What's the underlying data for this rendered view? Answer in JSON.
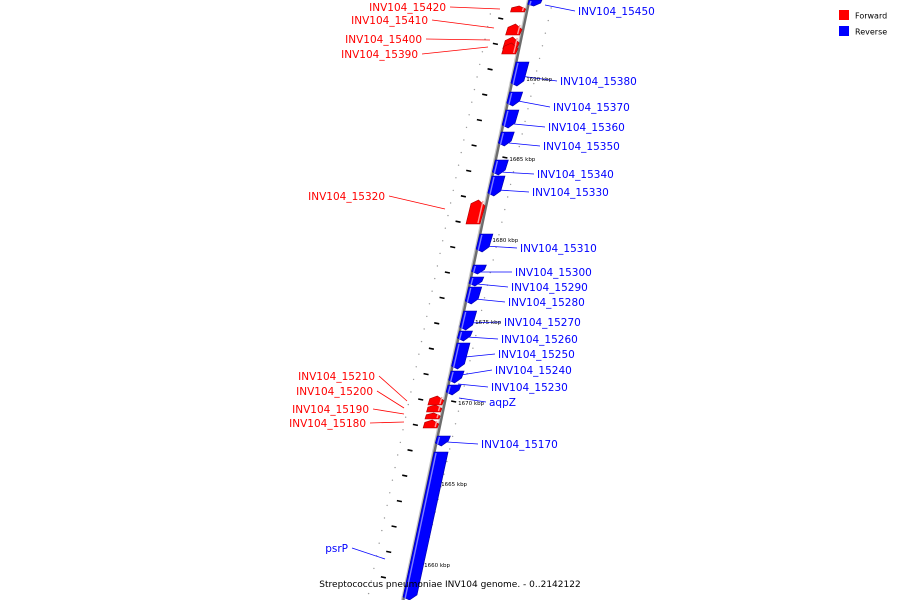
{
  "colors": {
    "forward": "#ff0000",
    "reverse": "#0000ff",
    "axis": "#8a8a8a",
    "tick": "#000000"
  },
  "legend": [
    {
      "label": "Forward",
      "color": "#ff0000"
    },
    {
      "label": "Reverse",
      "color": "#0000ff"
    }
  ],
  "caption": "Streptococcus pneumoniae INV104 genome. - 0..2142122",
  "kbp_labels": [
    "1690 kbp",
    "1685 kbp",
    "1680 kbp",
    "1675 kbp",
    "1670 kbp",
    "1665 kbp",
    "1660 kbp"
  ],
  "genes": [
    {
      "name": "INV104_15450",
      "strand": "reverse"
    },
    {
      "name": "INV104_15420",
      "strand": "forward"
    },
    {
      "name": "INV104_15410",
      "strand": "forward"
    },
    {
      "name": "INV104_15400",
      "strand": "forward"
    },
    {
      "name": "INV104_15390",
      "strand": "forward"
    },
    {
      "name": "INV104_15380",
      "strand": "reverse"
    },
    {
      "name": "INV104_15370",
      "strand": "reverse"
    },
    {
      "name": "INV104_15360",
      "strand": "reverse"
    },
    {
      "name": "INV104_15350",
      "strand": "reverse"
    },
    {
      "name": "INV104_15340",
      "strand": "reverse"
    },
    {
      "name": "INV104_15330",
      "strand": "reverse"
    },
    {
      "name": "INV104_15320",
      "strand": "forward"
    },
    {
      "name": "INV104_15310",
      "strand": "reverse"
    },
    {
      "name": "INV104_15300",
      "strand": "reverse"
    },
    {
      "name": "INV104_15290",
      "strand": "reverse"
    },
    {
      "name": "INV104_15280",
      "strand": "reverse"
    },
    {
      "name": "INV104_15270",
      "strand": "reverse"
    },
    {
      "name": "INV104_15260",
      "strand": "reverse"
    },
    {
      "name": "INV104_15250",
      "strand": "reverse"
    },
    {
      "name": "INV104_15240",
      "strand": "reverse"
    },
    {
      "name": "INV104_15230",
      "strand": "reverse"
    },
    {
      "name": "aqpZ",
      "strand": "reverse"
    },
    {
      "name": "INV104_15210",
      "strand": "forward"
    },
    {
      "name": "INV104_15200",
      "strand": "forward"
    },
    {
      "name": "INV104_15190",
      "strand": "forward"
    },
    {
      "name": "INV104_15180",
      "strand": "forward"
    },
    {
      "name": "INV104_15170",
      "strand": "reverse"
    },
    {
      "name": "psrP",
      "strand": "reverse"
    }
  ]
}
